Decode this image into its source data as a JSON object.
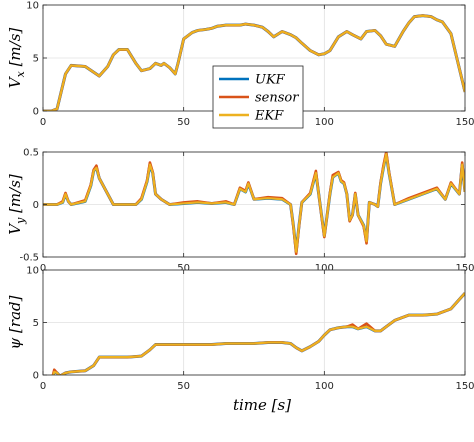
{
  "chart_data": [
    {
      "type": "line",
      "xlabel": "",
      "ylabel": "V_x [m/s]",
      "xlim": [
        0,
        150
      ],
      "ylim": [
        0,
        10
      ],
      "xticks": [
        "0",
        "50",
        "100",
        "150"
      ],
      "yticks": [
        "0",
        "5",
        "10"
      ],
      "grid": true,
      "legend": {
        "placement": "center",
        "entries": [
          "UKF",
          "sensor",
          "EKF"
        ]
      },
      "x": [
        0,
        3,
        5,
        8,
        10,
        15,
        20,
        23,
        25,
        27,
        30,
        33,
        35,
        38,
        40,
        42,
        43,
        45,
        47,
        48,
        50,
        53,
        55,
        58,
        60,
        62,
        65,
        68,
        70,
        72,
        75,
        78,
        80,
        82,
        85,
        88,
        90,
        92,
        95,
        98,
        100,
        102,
        105,
        108,
        110,
        113,
        115,
        118,
        120,
        122,
        125,
        128,
        130,
        132,
        135,
        138,
        140,
        142,
        145,
        147,
        150
      ],
      "series": [
        {
          "name": "UKF",
          "values": [
            0,
            0,
            0.2,
            3.5,
            4.3,
            4.2,
            3.3,
            4.2,
            5.3,
            5.8,
            5.8,
            4.5,
            3.8,
            4.0,
            4.5,
            4.3,
            4.5,
            4.1,
            3.5,
            4.5,
            6.8,
            7.4,
            7.6,
            7.7,
            7.8,
            8.0,
            8.1,
            8.1,
            8.1,
            8.2,
            8.1,
            7.9,
            7.5,
            7.0,
            7.5,
            7.2,
            6.9,
            6.4,
            5.7,
            5.3,
            5.4,
            5.7,
            7.0,
            7.5,
            7.2,
            6.8,
            7.5,
            7.6,
            7.1,
            6.3,
            6.1,
            7.5,
            8.3,
            8.9,
            9.0,
            8.9,
            8.6,
            8.4,
            7.3,
            5.1,
            1.8
          ]
        },
        {
          "name": "sensor",
          "values": [
            0,
            0,
            0.2,
            3.5,
            4.3,
            4.2,
            3.3,
            4.2,
            5.3,
            5.8,
            5.8,
            4.5,
            3.8,
            4.0,
            4.5,
            4.3,
            4.5,
            4.1,
            3.5,
            4.5,
            6.8,
            7.4,
            7.6,
            7.7,
            7.8,
            8.0,
            8.1,
            8.1,
            8.1,
            8.2,
            8.1,
            7.9,
            7.5,
            7.0,
            7.5,
            7.2,
            6.9,
            6.4,
            5.7,
            5.3,
            5.4,
            5.7,
            7.0,
            7.5,
            7.2,
            6.8,
            7.5,
            7.6,
            7.1,
            6.3,
            6.1,
            7.5,
            8.3,
            8.9,
            9.0,
            8.9,
            8.6,
            8.4,
            7.3,
            5.1,
            1.8
          ]
        },
        {
          "name": "EKF",
          "values": [
            0,
            0,
            0.2,
            3.5,
            4.3,
            4.2,
            3.3,
            4.2,
            5.3,
            5.8,
            5.8,
            4.5,
            3.8,
            4.0,
            4.5,
            4.3,
            4.5,
            4.1,
            3.5,
            4.5,
            6.8,
            7.4,
            7.6,
            7.7,
            7.8,
            8.0,
            8.1,
            8.1,
            8.1,
            8.2,
            8.1,
            7.9,
            7.5,
            7.0,
            7.5,
            7.2,
            6.9,
            6.4,
            5.7,
            5.3,
            5.4,
            5.7,
            7.0,
            7.5,
            7.2,
            6.8,
            7.5,
            7.6,
            7.1,
            6.3,
            6.1,
            7.5,
            8.3,
            8.9,
            9.0,
            8.9,
            8.6,
            8.4,
            7.3,
            5.1,
            1.8
          ]
        }
      ]
    },
    {
      "type": "line",
      "xlabel": "",
      "ylabel": "V_y [m/s]",
      "xlim": [
        0,
        150
      ],
      "ylim": [
        -0.5,
        0.5
      ],
      "xticks": [
        "0",
        "50",
        "100",
        "150"
      ],
      "yticks": [
        "-0.5",
        "0",
        "0.5"
      ],
      "grid": true,
      "x": [
        0,
        5,
        7,
        8,
        9,
        10,
        15,
        17,
        18,
        19,
        20,
        25,
        30,
        33,
        35,
        37,
        38,
        39,
        40,
        42,
        45,
        50,
        55,
        60,
        65,
        68,
        70,
        72,
        73,
        75,
        80,
        85,
        88,
        89,
        90,
        91,
        92,
        95,
        97,
        98,
        99,
        100,
        101,
        102,
        103,
        105,
        106,
        107,
        108,
        109,
        110,
        111,
        112,
        114,
        115,
        116,
        118,
        119,
        120,
        121,
        122,
        123,
        125,
        130,
        135,
        140,
        143,
        145,
        148,
        149,
        150
      ],
      "series": [
        {
          "name": "UKF",
          "values": [
            0,
            0,
            0.02,
            0.1,
            0.03,
            0,
            0.03,
            0.18,
            0.32,
            0.35,
            0.25,
            0,
            0,
            0,
            0.05,
            0.22,
            0.38,
            0.3,
            0.1,
            0.05,
            0,
            0.01,
            0.02,
            0.01,
            0.02,
            0,
            0.15,
            0.12,
            0.2,
            0.05,
            0.06,
            0.05,
            0,
            -0.2,
            -0.45,
            -0.2,
            0.02,
            0.1,
            0.3,
            0.1,
            -0.1,
            -0.3,
            -0.1,
            0.1,
            0.26,
            0.3,
            0.22,
            0.2,
            0.1,
            -0.15,
            -0.1,
            0.1,
            -0.1,
            -0.2,
            -0.35,
            0.02,
            0,
            -0.02,
            0.2,
            0.35,
            0.48,
            0.3,
            0,
            0.05,
            0.1,
            0.15,
            0.05,
            0.2,
            0.1,
            0.38,
            0.12
          ]
        },
        {
          "name": "sensor",
          "values": [
            0,
            0,
            0.03,
            0.11,
            0.03,
            0,
            0.04,
            0.19,
            0.33,
            0.37,
            0.25,
            0,
            0,
            0,
            0.06,
            0.23,
            0.4,
            0.31,
            0.1,
            0.05,
            0,
            0.02,
            0.03,
            0.01,
            0.03,
            0,
            0.16,
            0.13,
            0.21,
            0.05,
            0.07,
            0.06,
            0,
            -0.21,
            -0.47,
            -0.21,
            0.02,
            0.11,
            0.32,
            0.1,
            -0.11,
            -0.31,
            -0.1,
            0.11,
            0.28,
            0.31,
            0.23,
            0.21,
            0.1,
            -0.16,
            -0.1,
            0.11,
            -0.1,
            -0.21,
            -0.37,
            0.02,
            0,
            -0.02,
            0.21,
            0.37,
            0.5,
            0.31,
            0,
            0.06,
            0.11,
            0.16,
            0.05,
            0.21,
            0.1,
            0.4,
            0.12
          ]
        },
        {
          "name": "EKF",
          "values": [
            0,
            0,
            0.02,
            0.1,
            0.03,
            0,
            0.03,
            0.18,
            0.32,
            0.35,
            0.25,
            0,
            0,
            0,
            0.05,
            0.22,
            0.38,
            0.3,
            0.1,
            0.05,
            0,
            0.01,
            0.02,
            0.01,
            0.02,
            0,
            0.15,
            0.12,
            0.2,
            0.05,
            0.06,
            0.05,
            0,
            -0.2,
            -0.45,
            -0.2,
            0.02,
            0.1,
            0.3,
            0.1,
            -0.1,
            -0.3,
            -0.1,
            0.1,
            0.26,
            0.3,
            0.22,
            0.2,
            0.1,
            -0.15,
            -0.1,
            0.1,
            -0.1,
            -0.2,
            -0.35,
            0.02,
            0,
            -0.02,
            0.2,
            0.35,
            0.48,
            0.3,
            0,
            0.05,
            0.1,
            0.15,
            0.05,
            0.2,
            0.1,
            0.38,
            0.12
          ]
        }
      ]
    },
    {
      "type": "line",
      "xlabel": "time [s]",
      "ylabel": "ψ [rad]",
      "xlim": [
        0,
        150
      ],
      "ylim": [
        0,
        10
      ],
      "xticks": [
        "0",
        "50",
        "100",
        "150"
      ],
      "yticks": [
        "0",
        "5",
        "10"
      ],
      "grid": true,
      "x": [
        0,
        2,
        3,
        4,
        5,
        6,
        8,
        10,
        15,
        18,
        20,
        25,
        30,
        35,
        38,
        40,
        45,
        50,
        55,
        60,
        65,
        70,
        75,
        80,
        85,
        88,
        90,
        92,
        95,
        98,
        100,
        102,
        105,
        108,
        110,
        112,
        115,
        118,
        120,
        122,
        125,
        130,
        135,
        140,
        145,
        148,
        150
      ],
      "series": [
        {
          "name": "UKF",
          "values": [
            -0.9,
            -1.0,
            -0.6,
            0.3,
            0.2,
            -0.1,
            0.2,
            0.3,
            0.4,
            0.9,
            1.7,
            1.7,
            1.7,
            1.8,
            2.4,
            2.9,
            2.9,
            2.9,
            2.9,
            2.9,
            3.0,
            3.0,
            3.0,
            3.1,
            3.1,
            3.0,
            2.6,
            2.3,
            2.7,
            3.2,
            3.8,
            4.3,
            4.5,
            4.6,
            4.6,
            4.4,
            4.6,
            4.2,
            4.2,
            4.6,
            5.2,
            5.7,
            5.7,
            5.8,
            6.3,
            7.2,
            7.8
          ]
        },
        {
          "name": "sensor",
          "values": [
            -0.9,
            -1.0,
            -0.6,
            0.5,
            0.2,
            -0.1,
            0.2,
            0.3,
            0.4,
            0.9,
            1.7,
            1.7,
            1.7,
            1.8,
            2.4,
            2.9,
            2.9,
            2.9,
            2.9,
            2.9,
            3.0,
            3.0,
            3.0,
            3.1,
            3.1,
            3.0,
            2.6,
            2.3,
            2.7,
            3.2,
            3.8,
            4.3,
            4.5,
            4.6,
            4.8,
            4.4,
            4.9,
            4.2,
            4.2,
            4.6,
            5.2,
            5.7,
            5.7,
            5.8,
            6.3,
            7.2,
            7.8
          ]
        },
        {
          "name": "EKF",
          "values": [
            -0.9,
            -1.0,
            -0.6,
            0.3,
            0.2,
            -0.1,
            0.2,
            0.3,
            0.4,
            0.9,
            1.7,
            1.7,
            1.7,
            1.8,
            2.4,
            2.9,
            2.9,
            2.9,
            2.9,
            2.9,
            3.0,
            3.0,
            3.0,
            3.1,
            3.1,
            3.0,
            2.6,
            2.3,
            2.7,
            3.2,
            3.8,
            4.3,
            4.5,
            4.6,
            4.6,
            4.4,
            4.6,
            4.2,
            4.2,
            4.6,
            5.2,
            5.7,
            5.7,
            5.8,
            6.3,
            7.2,
            7.8
          ]
        }
      ]
    }
  ],
  "colors": {
    "UKF": "#0072bd",
    "sensor": "#d95319",
    "EKF": "#edb120",
    "grid": "#e0e0e0",
    "axis": "#262626"
  }
}
